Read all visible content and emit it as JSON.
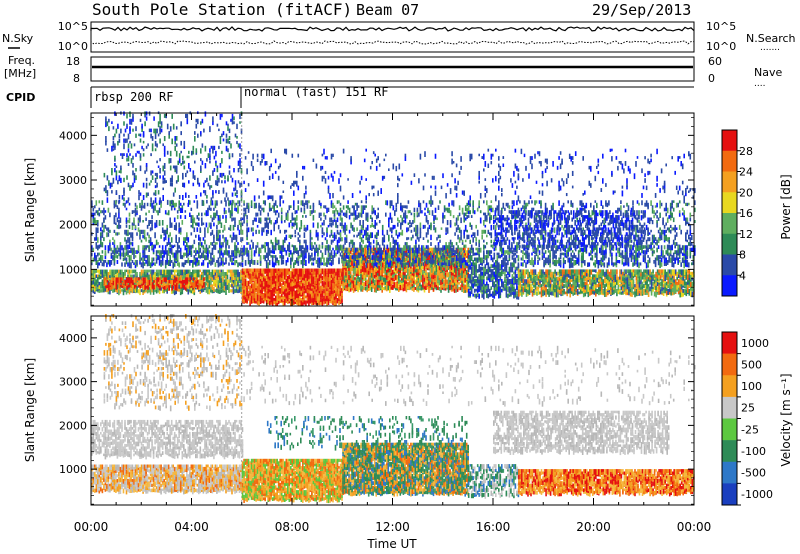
{
  "header": {
    "station": "South Pole Station (fitACF)",
    "beam": "Beam 07",
    "date": "29/Sep/2013"
  },
  "param_panels": {
    "nsky_label": "N.Sky",
    "nsearch_label": "N.Search",
    "nsky_ticks": [
      "10^5",
      "10^0"
    ],
    "nsearch_ticks": [
      "10^5",
      "10^0"
    ],
    "freq_label_1": "Freq.",
    "freq_label_2": "[MHz]",
    "freq_ticks": [
      "18",
      "8"
    ],
    "nave_label": "Nave",
    "nave_ticks": [
      "60",
      "0"
    ],
    "cpid_label": "CPID",
    "cpid_segments": [
      {
        "label": "rbsp 200 RF",
        "start_hour": 0
      },
      {
        "label": "normal (fast) 151 RF",
        "start_hour": 6
      }
    ]
  },
  "chart_data": [
    {
      "type": "heatmap",
      "panel": "power",
      "xlabel": "",
      "ylabel": "Slant Range [km]",
      "x_range_hours": [
        0,
        24
      ],
      "ylim": [
        180,
        4500
      ],
      "y_ticks": [
        1000,
        2000,
        3000,
        4000
      ],
      "colorbar_label": "Power [dB]",
      "colorbar_ticks": [
        4,
        8,
        12,
        16,
        20,
        24,
        28
      ],
      "colorbar_colors": [
        "#0a1aff",
        "#2a4aa8",
        "#2e8b57",
        "#5fae5f",
        "#e8d820",
        "#f4a020",
        "#f26a10",
        "#e51010"
      ],
      "bands": [
        {
          "from_hour": 0,
          "to_hour": 6,
          "y_from": 550,
          "y_to": 900,
          "level": "high"
        },
        {
          "from_hour": 6,
          "to_hour": 10,
          "y_from": 300,
          "y_to": 1100,
          "level": "very high"
        },
        {
          "from_hour": 10,
          "to_hour": 15,
          "y_from": 600,
          "y_to": 1400,
          "level": "high"
        },
        {
          "from_hour": 17,
          "to_hour": 24,
          "y_from": 550,
          "y_to": 900,
          "level": "medium"
        }
      ]
    },
    {
      "type": "heatmap",
      "panel": "velocity",
      "xlabel": "Time UT",
      "ylabel": "Slant Range [km]",
      "x_range_hours": [
        0,
        24
      ],
      "ylim": [
        180,
        4500
      ],
      "y_ticks": [
        1000,
        2000,
        3000,
        4000
      ],
      "x_tick_labels": [
        "00:00",
        "04:00",
        "08:00",
        "12:00",
        "16:00",
        "20:00",
        "00:00"
      ],
      "colorbar_label": "Velocity [m s⁻¹]",
      "colorbar_ticks": [
        "1000",
        "500",
        "100",
        "25",
        "-25",
        "-100",
        "-500",
        "-1000"
      ],
      "colorbar_colors": [
        "#1a3fbf",
        "#2e78c8",
        "#2e8b57",
        "#5cc840",
        "#c8c8c8",
        "#f4a020",
        "#f26a10",
        "#e51010"
      ]
    }
  ]
}
